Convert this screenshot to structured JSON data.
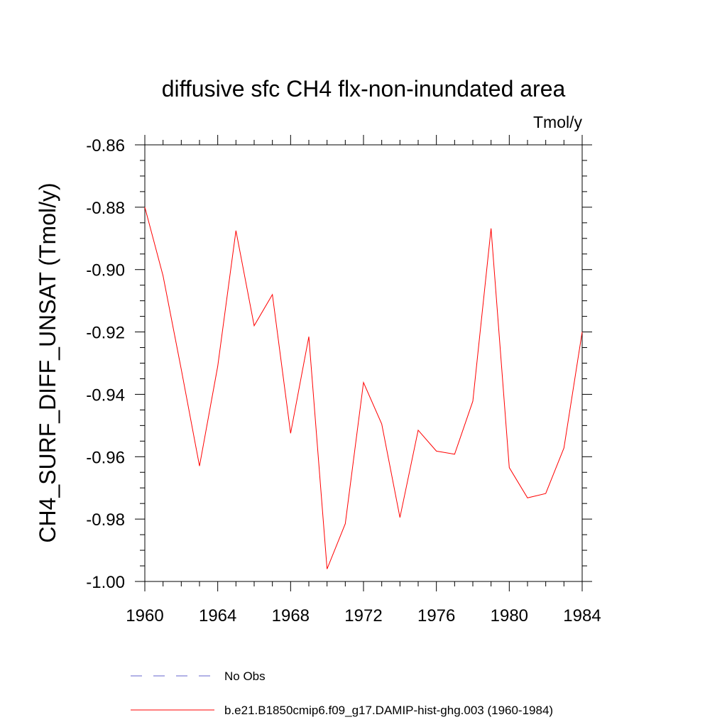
{
  "chart_data": {
    "type": "line",
    "title": "diffusive sfc CH4 flx-non-inundated area",
    "units": "Tmol/y",
    "ylabel": "CH4_SURF_DIFF_UNSAT  (Tmol/y)",
    "xlabel": "",
    "xlim": [
      1960,
      1984
    ],
    "ylim": [
      -1.0,
      -0.86
    ],
    "x_ticks": [
      1960,
      1964,
      1968,
      1972,
      1976,
      1980,
      1984
    ],
    "x_tick_labels": [
      "1960",
      "1964",
      "1968",
      "1972",
      "1976",
      "1980",
      "1984"
    ],
    "y_ticks": [
      -0.86,
      -0.88,
      -0.9,
      -0.92,
      -0.94,
      -0.96,
      -0.98,
      -1.0
    ],
    "y_tick_labels": [
      "-0.86",
      "-0.88",
      "-0.90",
      "-0.92",
      "-0.94",
      "-0.96",
      "-0.98",
      "-1.00"
    ],
    "x": [
      1960,
      1961,
      1962,
      1963,
      1964,
      1965,
      1966,
      1967,
      1968,
      1969,
      1970,
      1971,
      1972,
      1973,
      1974,
      1975,
      1976,
      1977,
      1978,
      1979,
      1980,
      1981,
      1982,
      1983,
      1984
    ],
    "series": [
      {
        "name": "b.e21.B1850cmip6.f09_g17.DAMIP-hist-ghg.003 (1960-1984)",
        "color": "#ff0000",
        "style": "solid",
        "values": [
          -0.88,
          -0.902,
          -0.932,
          -0.963,
          -0.931,
          -0.8875,
          -0.918,
          -0.908,
          -0.9525,
          -0.9215,
          -0.996,
          -0.9815,
          -0.9362,
          -0.9495,
          -0.9795,
          -0.9515,
          -0.9582,
          -0.9592,
          -0.9422,
          -0.8868,
          -0.9635,
          -0.9732,
          -0.9718,
          -0.9572,
          -0.92
        ]
      }
    ],
    "legend": {
      "placement": "bottom",
      "entries": [
        {
          "label": "No Obs",
          "color": "#6666cc",
          "style": "dashed"
        },
        {
          "label": "b.e21.B1850cmip6.f09_g17.DAMIP-hist-ghg.003 (1960-1984)",
          "color": "#ff0000",
          "style": "solid"
        }
      ]
    }
  }
}
